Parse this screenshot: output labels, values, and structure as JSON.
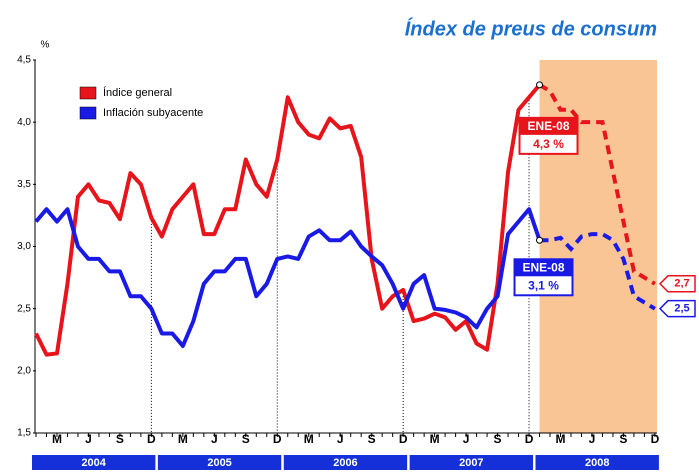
{
  "chart_data": {
    "type": "line",
    "title": "Índex de preus de consum",
    "y_unit": "%",
    "categories": [
      null,
      null,
      "M",
      null,
      null,
      "J",
      null,
      null,
      "S",
      null,
      null,
      "D",
      null,
      null,
      "M",
      null,
      null,
      "J",
      null,
      null,
      "S",
      null,
      null,
      "D",
      null,
      null,
      "M",
      null,
      null,
      "J",
      null,
      null,
      "S",
      null,
      null,
      "D",
      null,
      null,
      "M",
      null,
      null,
      "J",
      null,
      null,
      "S",
      null,
      null,
      "D",
      null,
      null,
      "M",
      null,
      null,
      "J",
      null,
      null,
      "S",
      null,
      null,
      "D"
    ],
    "years": [
      "2004",
      "2005",
      "2006",
      "2007",
      "2008"
    ],
    "ylim": [
      1.5,
      4.5
    ],
    "yticks": [
      {
        "value": 1.5,
        "label": "1,5"
      },
      {
        "value": 2.0,
        "label": "2,0"
      },
      {
        "value": 2.5,
        "label": "2,5"
      },
      {
        "value": 3.0,
        "label": "3,0"
      },
      {
        "value": 3.5,
        "label": "3,5"
      },
      {
        "value": 4.0,
        "label": "4,0"
      },
      {
        "value": 4.5,
        "label": "4,5"
      }
    ],
    "shade_color": "#fac595",
    "series": [
      {
        "name": "Índice general",
        "color": "#e8141b",
        "values": [
          2.3,
          2.13,
          2.14,
          2.7,
          3.4,
          3.5,
          3.37,
          3.35,
          3.22,
          3.59,
          3.5,
          3.23,
          3.08,
          3.3,
          3.4,
          3.5,
          3.1,
          3.1,
          3.3,
          3.3,
          3.7,
          3.5,
          3.4,
          3.7,
          4.2,
          4.0,
          3.9,
          3.87,
          4.03,
          3.95,
          3.97,
          3.72,
          2.9,
          2.5,
          2.6,
          2.65,
          2.4,
          2.42,
          2.46,
          2.43,
          2.33,
          2.4,
          2.22,
          2.17,
          2.7,
          3.6,
          4.1,
          4.2,
          4.3,
          null,
          null,
          null,
          null,
          null,
          null,
          null,
          null,
          null,
          null,
          null
        ],
        "forecast": [
          null,
          null,
          null,
          null,
          null,
          null,
          null,
          null,
          null,
          null,
          null,
          null,
          null,
          null,
          null,
          null,
          null,
          null,
          null,
          null,
          null,
          null,
          null,
          null,
          null,
          null,
          null,
          null,
          null,
          null,
          null,
          null,
          null,
          null,
          null,
          null,
          null,
          null,
          null,
          null,
          null,
          null,
          null,
          null,
          null,
          null,
          null,
          null,
          null,
          4.25,
          4.1,
          4.1,
          4.0,
          4.0,
          4.0,
          3.6,
          3.2,
          2.8,
          2.75,
          2.7
        ],
        "forecast_value_labels": [
          null,
          null,
          null,
          null,
          null,
          null,
          null,
          null,
          null,
          null,
          null,
          null,
          null,
          null,
          null,
          null,
          null,
          null,
          null,
          null,
          null,
          null,
          null,
          null,
          null,
          null,
          null,
          null,
          null,
          null,
          null,
          null,
          null,
          null,
          null,
          null,
          null,
          null,
          null,
          null,
          null,
          null,
          null,
          null,
          null,
          null,
          null,
          null,
          null,
          null,
          null,
          null,
          null,
          null,
          null,
          null,
          null,
          null,
          null,
          "2,7"
        ],
        "callout": {
          "title": "ENE-08",
          "label": "4,3 %"
        }
      },
      {
        "name": "Inflación subyacente",
        "color": "#1a1ae6",
        "values": [
          3.2,
          3.3,
          3.2,
          3.3,
          3.0,
          2.9,
          2.9,
          2.8,
          2.8,
          2.6,
          2.6,
          2.5,
          2.3,
          2.3,
          2.2,
          2.4,
          2.7,
          2.8,
          2.8,
          2.9,
          2.9,
          2.6,
          2.7,
          2.9,
          2.92,
          2.9,
          3.08,
          3.13,
          3.05,
          3.05,
          3.12,
          3.0,
          2.92,
          2.85,
          2.7,
          2.5,
          2.7,
          2.77,
          2.5,
          2.49,
          2.47,
          2.43,
          2.35,
          2.5,
          2.6,
          3.1,
          3.2,
          3.3,
          3.05,
          null,
          null,
          null,
          null,
          null,
          null,
          null,
          null,
          null,
          null,
          null
        ],
        "forecast": [
          null,
          null,
          null,
          null,
          null,
          null,
          null,
          null,
          null,
          null,
          null,
          null,
          null,
          null,
          null,
          null,
          null,
          null,
          null,
          null,
          null,
          null,
          null,
          null,
          null,
          null,
          null,
          null,
          null,
          null,
          null,
          null,
          null,
          null,
          null,
          null,
          null,
          null,
          null,
          null,
          null,
          null,
          null,
          null,
          null,
          null,
          null,
          null,
          null,
          3.05,
          3.07,
          2.98,
          3.08,
          3.1,
          3.1,
          3.05,
          2.9,
          2.6,
          2.55,
          2.5
        ],
        "forecast_value_labels": [
          null,
          null,
          null,
          null,
          null,
          null,
          null,
          null,
          null,
          null,
          null,
          null,
          null,
          null,
          null,
          null,
          null,
          null,
          null,
          null,
          null,
          null,
          null,
          null,
          null,
          null,
          null,
          null,
          null,
          null,
          null,
          null,
          null,
          null,
          null,
          null,
          null,
          null,
          null,
          null,
          null,
          null,
          null,
          null,
          null,
          null,
          null,
          null,
          null,
          null,
          null,
          null,
          null,
          null,
          null,
          null,
          null,
          null,
          null,
          "2,5"
        ],
        "callout": {
          "title": "ENE-08",
          "label": "3,1 %"
        }
      }
    ]
  }
}
